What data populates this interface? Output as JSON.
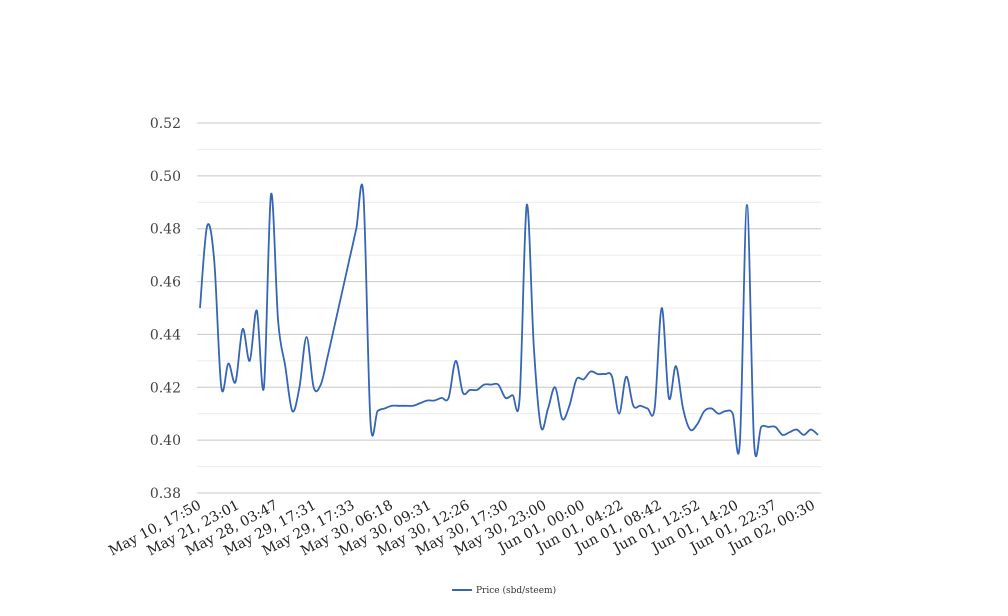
{
  "chart_data": {
    "type": "line",
    "title": "",
    "xlabel": "",
    "ylabel": "",
    "ylim": [
      0.38,
      0.52
    ],
    "y_ticks": [
      "0.38",
      "0.40",
      "0.42",
      "0.44",
      "0.46",
      "0.48",
      "0.50",
      "0.52"
    ],
    "y_tick_values": [
      0.38,
      0.4,
      0.42,
      0.44,
      0.46,
      0.48,
      0.5,
      0.52
    ],
    "x_tick_labels": [
      "May 10, 17:50",
      "May 21, 23:01",
      "May 28, 03:47",
      "May 29, 17:31",
      "May 29, 17:33",
      "May 30, 06:18",
      "May 30, 09:31",
      "May 30, 12:26",
      "May 30, 17:30",
      "May 30, 23:00",
      "Jun 01, 00:00",
      "Jun 01, 04:22",
      "Jun 01, 08:42",
      "Jun 01, 12:52",
      "Jun 01, 14:20",
      "Jun 01, 22:37",
      "Jun 02, 00:30"
    ],
    "grid": true,
    "legend_position": "bottom",
    "series": [
      {
        "name": "Price (sbd/steem)",
        "color": "#3465b6",
        "values": [
          0.45,
          0.481,
          0.468,
          0.42,
          0.429,
          0.422,
          0.442,
          0.43,
          0.449,
          0.42,
          0.493,
          0.445,
          0.428,
          0.411,
          0.42,
          0.439,
          0.42,
          0.421,
          0.432,
          0.444,
          0.456,
          0.468,
          0.48,
          0.493,
          0.407,
          0.411,
          0.412,
          0.413,
          0.413,
          0.413,
          0.413,
          0.414,
          0.415,
          0.415,
          0.416,
          0.416,
          0.43,
          0.418,
          0.419,
          0.419,
          0.421,
          0.421,
          0.421,
          0.416,
          0.417,
          0.416,
          0.489,
          0.435,
          0.405,
          0.412,
          0.42,
          0.408,
          0.413,
          0.423,
          0.423,
          0.426,
          0.425,
          0.425,
          0.424,
          0.41,
          0.424,
          0.413,
          0.413,
          0.412,
          0.412,
          0.45,
          0.416,
          0.428,
          0.412,
          0.404,
          0.406,
          0.411,
          0.412,
          0.41,
          0.411,
          0.41,
          0.399,
          0.489,
          0.399,
          0.405,
          0.405,
          0.405,
          0.402,
          0.403,
          0.404,
          0.402,
          0.404,
          0.402
        ]
      }
    ]
  }
}
